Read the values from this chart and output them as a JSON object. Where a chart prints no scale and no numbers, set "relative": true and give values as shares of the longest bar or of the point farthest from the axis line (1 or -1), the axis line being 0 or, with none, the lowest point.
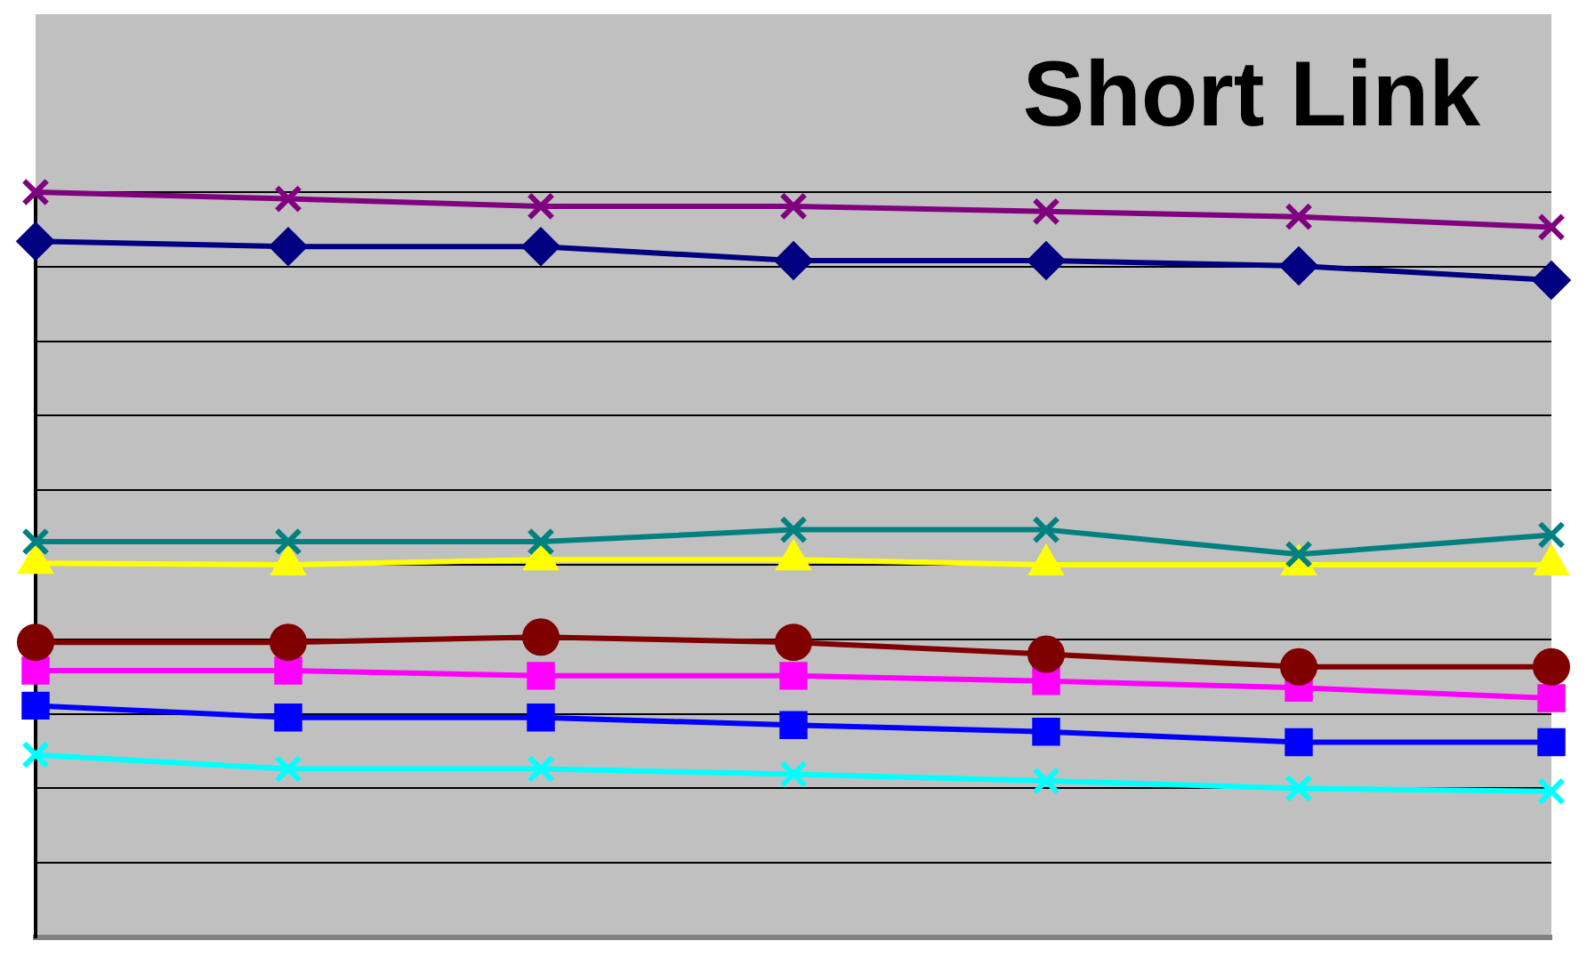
{
  "chart_data": {
    "type": "line",
    "title": "Short Link",
    "relative": true,
    "grid": "y",
    "legend": false,
    "categories": [
      null,
      null,
      null,
      null,
      null,
      null,
      null
    ],
    "series": [
      {
        "color": "#800080",
        "marker": "cross",
        "values": [
          1,
          0.991,
          0.981,
          0.981,
          0.974,
          0.967,
          0.953
        ]
      },
      {
        "color": "#000080",
        "marker": "diamond",
        "values": [
          0.934,
          0.927,
          0.927,
          0.908,
          0.908,
          0.901,
          0.882
        ]
      },
      {
        "color": "#008080",
        "marker": "cross",
        "values": [
          0.531,
          0.531,
          0.531,
          0.547,
          0.547,
          0.514,
          0.54
        ]
      },
      {
        "color": "#ffff00",
        "marker": "triangle",
        "values": [
          0.502,
          0.5,
          0.507,
          0.507,
          0.5,
          0.5,
          0.5
        ]
      },
      {
        "color": "#800000",
        "marker": "circle",
        "values": [
          0.396,
          0.396,
          0.403,
          0.396,
          0.38,
          0.363,
          0.363
        ]
      },
      {
        "color": "#ff00ff",
        "marker": "square",
        "values": [
          0.358,
          0.358,
          0.351,
          0.351,
          0.344,
          0.335,
          0.321
        ]
      },
      {
        "color": "#0000ff",
        "marker": "square",
        "values": [
          0.311,
          0.295,
          0.295,
          0.285,
          0.276,
          0.262,
          0.262
        ]
      },
      {
        "color": "#00ffff",
        "marker": "cross",
        "values": [
          0.245,
          0.226,
          0.226,
          0.219,
          0.21,
          0.2,
          0.196
        ]
      }
    ]
  }
}
